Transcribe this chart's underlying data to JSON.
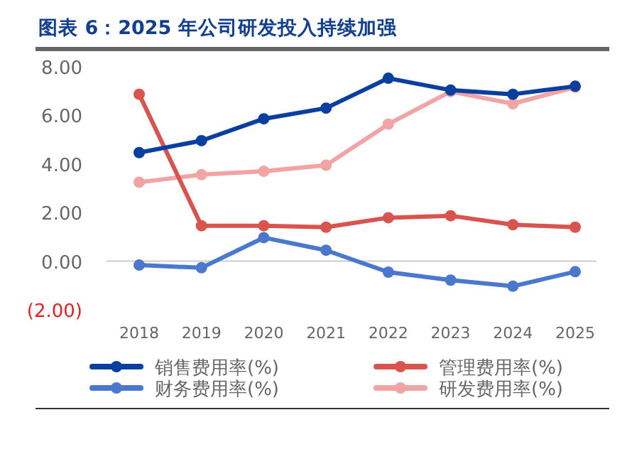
{
  "chart_data": {
    "type": "line",
    "title": "图表 6：2025 年公司研发投入持续加强",
    "categories": [
      "2018",
      "2019",
      "2020",
      "2021",
      "2022",
      "2023",
      "2024",
      "2025"
    ],
    "series": [
      {
        "name": "销售费用率(%)",
        "color": "#0a3fa0",
        "values": [
          4.47,
          4.96,
          5.86,
          6.3,
          7.53,
          7.04,
          6.87,
          7.2
        ]
      },
      {
        "name": "管理费用率(%)",
        "color": "#d9534f",
        "values": [
          6.87,
          1.46,
          1.46,
          1.4,
          1.79,
          1.87,
          1.5,
          1.4
        ]
      },
      {
        "name": "财务费用率(%)",
        "color": "#4a78cc",
        "values": [
          -0.16,
          -0.27,
          0.97,
          0.45,
          -0.45,
          -0.78,
          -1.03,
          -0.43
        ]
      },
      {
        "name": "研发费用率(%)",
        "color": "#f2a3a3",
        "values": [
          3.25,
          3.56,
          3.7,
          3.95,
          5.64,
          6.98,
          6.48,
          7.16
        ]
      }
    ],
    "ylim": [
      -2,
      8
    ],
    "yticks": [
      {
        "value": -2,
        "label": "(2.00)"
      },
      {
        "value": 0,
        "label": "0.00"
      },
      {
        "value": 2,
        "label": "2.00"
      },
      {
        "value": 4,
        "label": "4.00"
      },
      {
        "value": 6,
        "label": "6.00"
      },
      {
        "value": 8,
        "label": "8.00"
      }
    ],
    "ref_lines": [
      {
        "axis": "y",
        "value": 0,
        "color": "#cccccc"
      }
    ],
    "marker": "circle",
    "line_style": "solid",
    "legend": "bottom",
    "grid": false
  }
}
